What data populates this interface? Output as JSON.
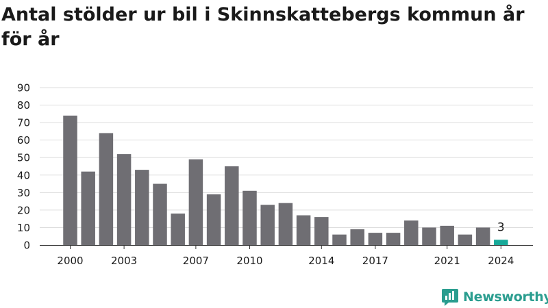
{
  "title": "Antal stölder ur bil i Skinnskattebergs kommun år för år",
  "brand": {
    "name": "Newsworthy"
  },
  "colors": {
    "bar": "#6f6e73",
    "highlight": "#17a999",
    "grid": "#dddddd",
    "text": "#1a1a1a",
    "brand": "#2a9d8f"
  },
  "chart_data": {
    "type": "bar",
    "categories": [
      "2000",
      "2001",
      "2002",
      "2003",
      "2004",
      "2005",
      "2006",
      "2007",
      "2008",
      "2009",
      "2010",
      "2011",
      "2012",
      "2013",
      "2014",
      "2015",
      "2016",
      "2017",
      "2018",
      "2019",
      "2020",
      "2021",
      "2022",
      "2023",
      "2024"
    ],
    "values": [
      74,
      42,
      64,
      52,
      43,
      35,
      18,
      49,
      29,
      45,
      31,
      23,
      24,
      17,
      16,
      6,
      9,
      7,
      7,
      14,
      10,
      11,
      6,
      10,
      3
    ],
    "x_tick_labels": [
      "2000",
      "2003",
      "2007",
      "2010",
      "2014",
      "2017",
      "2021",
      "2024"
    ],
    "y_ticks": [
      0,
      10,
      20,
      30,
      40,
      50,
      60,
      70,
      80,
      90
    ],
    "ylim": [
      0,
      90
    ],
    "highlight": {
      "category": "2024",
      "label": "3"
    },
    "grid": true,
    "legend": "none"
  }
}
